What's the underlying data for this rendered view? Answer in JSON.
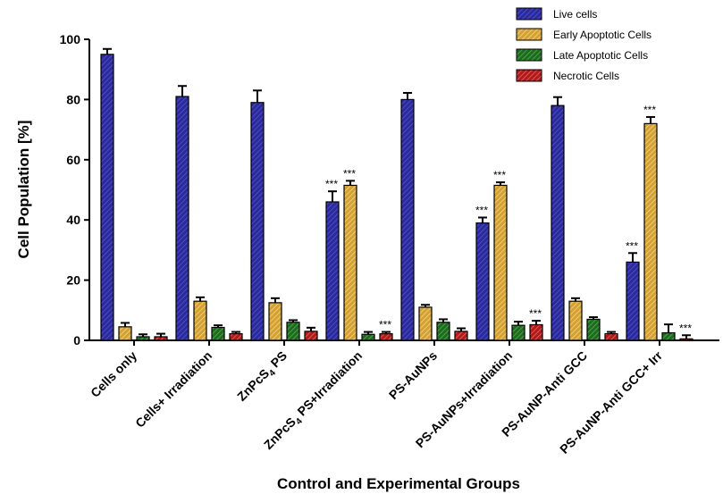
{
  "chart_data": {
    "type": "bar",
    "title": "",
    "xlabel": "Control and Experimental Groups",
    "ylabel": "Cell Population [%]",
    "ylim": [
      0,
      100
    ],
    "yticks": [
      0,
      20,
      40,
      60,
      80,
      100
    ],
    "categories": [
      {
        "label": "Cells only"
      },
      {
        "label": "Cells+ Irradiation"
      },
      {
        "label": "ZnPcS",
        "sub": "4",
        "tail": " PS"
      },
      {
        "label": "ZnPcS",
        "sub": "4",
        "tail": " PS+Irradiation"
      },
      {
        "label": "PS-AuNPs"
      },
      {
        "label": "PS-AuNPs+Irradiation"
      },
      {
        "label": "PS-AuNP-Anti GCC"
      },
      {
        "label": "PS-AuNP-Anti GCC+ Irr"
      }
    ],
    "significance_label": "***",
    "series": [
      {
        "name": "Live cells",
        "color": "#2a2a9a",
        "stripe": "#5a5ad8",
        "values": [
          95,
          81,
          79,
          46,
          80,
          39,
          78,
          26
        ],
        "errors": [
          1.8,
          3.5,
          4,
          3.5,
          2.2,
          1.8,
          2.8,
          3
        ],
        "significant": [
          false,
          false,
          false,
          true,
          false,
          true,
          false,
          true
        ]
      },
      {
        "name": "Early Apoptotic Cells",
        "color": "#d4a030",
        "stripe": "#f5dfa0",
        "values": [
          4.5,
          13,
          12.5,
          51.5,
          11,
          51.5,
          13,
          72
        ],
        "errors": [
          1.3,
          1.3,
          1.5,
          1.5,
          0.8,
          1,
          1,
          2.2
        ],
        "significant": [
          false,
          false,
          false,
          true,
          false,
          true,
          false,
          true
        ]
      },
      {
        "name": "Late Apoptotic Cells",
        "color": "#1f6a1f",
        "stripe": "#5ab85a",
        "values": [
          1.2,
          4.3,
          6,
          2,
          6,
          5,
          7,
          2.5
        ],
        "errors": [
          0.8,
          0.7,
          0.7,
          0.8,
          1,
          1.2,
          0.7,
          2.8
        ],
        "significant": [
          false,
          false,
          false,
          false,
          false,
          false,
          false,
          false
        ]
      },
      {
        "name": "Necrotic Cells",
        "color": "#b01a1a",
        "stripe": "#f07070",
        "values": [
          1.2,
          2.2,
          3,
          2.2,
          3,
          5.2,
          2.2,
          0.5
        ],
        "errors": [
          1,
          0.6,
          1.2,
          0.6,
          1,
          1.3,
          0.6,
          1.2
        ],
        "significant": [
          false,
          false,
          false,
          true,
          false,
          true,
          false,
          true
        ]
      }
    ]
  }
}
